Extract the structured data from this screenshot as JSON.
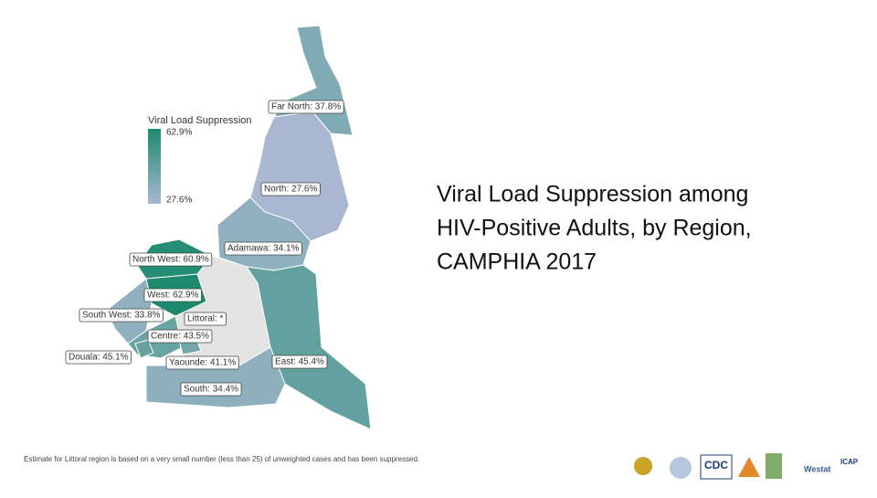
{
  "map": {
    "title_lines": [
      "Viral Load Suppression among",
      "HIV-Positive Adults, by Region,",
      "CAMPHIA 2017"
    ],
    "legend": {
      "title": "Viral Load Suppression",
      "max": 62.9,
      "max_label": "62.9%",
      "min": 27.6,
      "min_label": "27.6%",
      "low_color": "#a9b8d0",
      "high_color": "#1d8a6e"
    },
    "no_data_color": "#e3e3e3",
    "regions": [
      {
        "label": "Far North: 37.8%",
        "value": 37.8
      },
      {
        "label": "North: 27.6%",
        "value": 27.6
      },
      {
        "label": "Adamawa: 34.1%",
        "value": 34.1
      },
      {
        "label": "North West: 60.9%",
        "value": 60.9
      },
      {
        "label": "West: 62.9%",
        "value": 62.9
      },
      {
        "label": "South West: 33.8%",
        "value": 33.8
      },
      {
        "label": "Centre: 43.5%",
        "value": 43.5
      },
      {
        "label": "Littoral: *",
        "value": null
      },
      {
        "label": "Douala: 45.1%",
        "value": 45.1
      },
      {
        "label": "Yaounde: 41.1%",
        "value": 41.1
      },
      {
        "label": "East: 45.4%",
        "value": 45.4
      },
      {
        "label": "South: 34.4%",
        "value": 34.4
      }
    ],
    "footnote": "Estimate for Littoral region is based on a very small number (less than 25) of unweighted cases and has been suppressed.",
    "logos": [
      "CDC",
      "Westat",
      "ICAP"
    ]
  }
}
